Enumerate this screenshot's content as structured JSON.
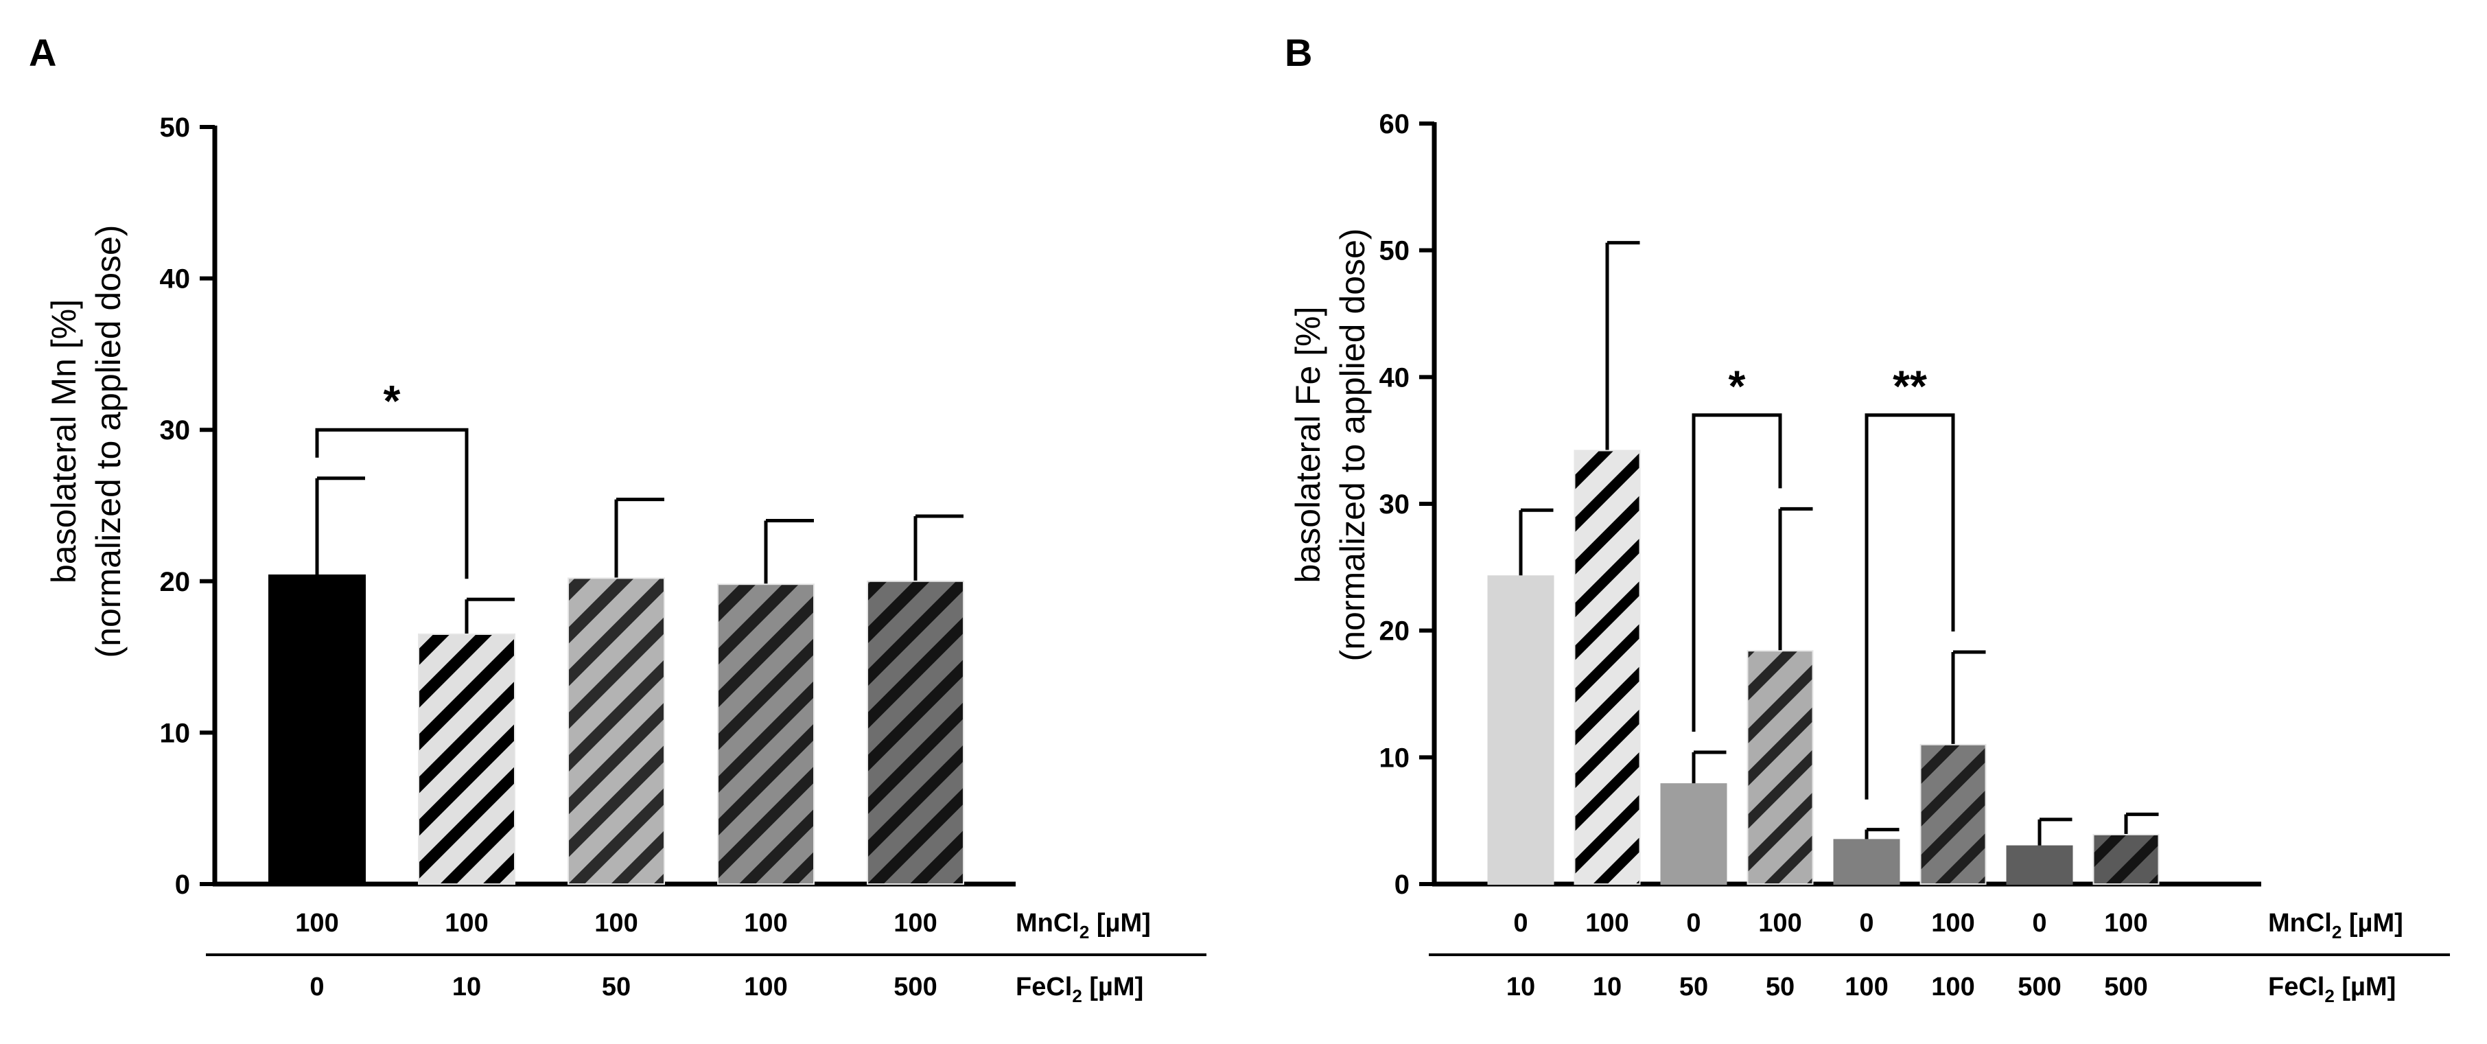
{
  "chart_data": [
    {
      "panel": "A",
      "type": "bar",
      "ylabel_line1": "basolateral Mn [%]",
      "ylabel_line2": "(normalized to applied dose)",
      "ylim": [
        0,
        50
      ],
      "yticks": [
        "0",
        "10",
        "20",
        "30",
        "40",
        "50"
      ],
      "categories": [
        "100/0",
        "100/10",
        "100/50",
        "100/100",
        "100/500"
      ],
      "values": [
        20.4,
        16.5,
        20.2,
        19.8,
        20.0
      ],
      "errors": [
        6.4,
        2.3,
        5.2,
        4.2,
        4.3
      ],
      "styles": [
        {
          "fill": "#000000",
          "hatch": "none"
        },
        {
          "fill": "#e0e0e0",
          "hatch": "#000000"
        },
        {
          "fill": "#b3b3b3",
          "hatch": "#2b2b2b"
        },
        {
          "fill": "#8c8c8c",
          "hatch": "#1f1f1f"
        },
        {
          "fill": "#6e6e6e",
          "hatch": "#141414"
        }
      ],
      "row1_label": "MnCl",
      "row1_sub": "2",
      "row1_unit": " [µM]",
      "row1_values": [
        "100",
        "100",
        "100",
        "100",
        "100"
      ],
      "row2_label": "FeCl",
      "row2_sub": "2",
      "row2_unit": "  [µM]",
      "row2_values": [
        "0",
        "10",
        "50",
        "100",
        "500"
      ],
      "significance": [
        {
          "from": 0,
          "to": 1,
          "label": "*",
          "level": 30
        }
      ]
    },
    {
      "panel": "B",
      "type": "bar",
      "ylabel_line1": "basolateral Fe [%]",
      "ylabel_line2": "(normalized to applied dose)",
      "ylim": [
        0,
        60
      ],
      "yticks": [
        "0",
        "10",
        "20",
        "30",
        "40",
        "50",
        "60"
      ],
      "categories": [
        "0/10",
        "100/10",
        "0/50",
        "100/50",
        "0/100",
        "100/100",
        "0/500",
        "100/500"
      ],
      "values": [
        24.3,
        34.2,
        7.9,
        18.4,
        3.5,
        11.0,
        3.0,
        3.9
      ],
      "errors": [
        5.2,
        16.4,
        2.5,
        11.2,
        0.8,
        7.3,
        2.1,
        1.6
      ],
      "styles": [
        {
          "fill": "#d6d6d6",
          "hatch": "none"
        },
        {
          "fill": "#e6e6e6",
          "hatch": "#000000"
        },
        {
          "fill": "#9e9e9e",
          "hatch": "none"
        },
        {
          "fill": "#adadad",
          "hatch": "#262626"
        },
        {
          "fill": "#808080",
          "hatch": "none"
        },
        {
          "fill": "#7a7a7a",
          "hatch": "#1f1f1f"
        },
        {
          "fill": "#5e5e5e",
          "hatch": "none"
        },
        {
          "fill": "#5a5a5a",
          "hatch": "#141414"
        }
      ],
      "row1_label": "MnCl",
      "row1_sub": "2",
      "row1_unit": " [µM]",
      "row1_values": [
        "0",
        "100",
        "0",
        "100",
        "0",
        "100",
        "0",
        "100"
      ],
      "row2_label": "FeCl",
      "row2_sub": "2",
      "row2_unit": "  [µM]",
      "row2_values": [
        "10",
        "10",
        "50",
        "50",
        "100",
        "100",
        "500",
        "500"
      ],
      "significance": [
        {
          "from": 2,
          "to": 3,
          "label": "*",
          "level": 37
        },
        {
          "from": 4,
          "to": 5,
          "label": "**",
          "level": 37
        }
      ]
    }
  ]
}
